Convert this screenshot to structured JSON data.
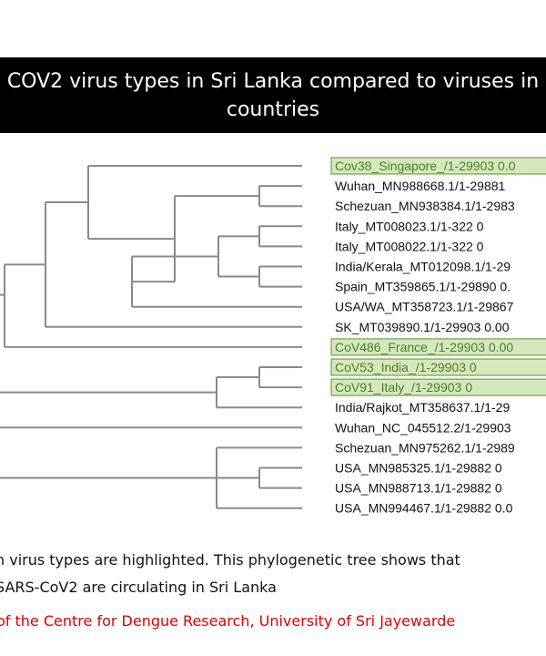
{
  "title": {
    "line1": "COV2 virus types in Sri Lanka compared to viruses in",
    "line2": "countries"
  },
  "tree": {
    "leaves": [
      {
        "label": "Cov38_Singapore_/1-29903 0.0",
        "highlighted": true
      },
      {
        "label": "Wuhan_MN988668.1/1-29881",
        "highlighted": false
      },
      {
        "label": "Schezuan_MN938384.1/1-2983",
        "highlighted": false
      },
      {
        "label": "Italy_MT008023.1/1-322 0",
        "highlighted": false
      },
      {
        "label": "Italy_MT008022.1/1-322 0",
        "highlighted": false
      },
      {
        "label": "India/Kerala_MT012098.1/1-29",
        "highlighted": false
      },
      {
        "label": "Spain_MT359865.1/1-29890 0.",
        "highlighted": false
      },
      {
        "label": "USA/WA_MT358723.1/1-29867",
        "highlighted": false
      },
      {
        "label": "SK_MT039890.1/1-29903 0.00",
        "highlighted": false
      },
      {
        "label": "CoV486_France_/1-29903 0.00",
        "highlighted": true
      },
      {
        "label": "CoV53_India_/1-29903 0",
        "highlighted": true
      },
      {
        "label": "CoV91_Italy_/1-29903 0",
        "highlighted": true
      },
      {
        "label": "India/Rajkot_MT358637.1/1-29",
        "highlighted": false
      },
      {
        "label": "Wuhan_NC_045512.2/1-29903",
        "highlighted": false
      },
      {
        "label": "Schezuan_MN975262.1/1-2989",
        "highlighted": false
      },
      {
        "label": "USA_MN985325.1/1-29882 0",
        "highlighted": false
      },
      {
        "label": "USA_MN988713.1/1-29882 0",
        "highlighted": false
      },
      {
        "label": "USA_MN994467.1/1-29882 0.0",
        "highlighted": false
      }
    ]
  },
  "caption": {
    "line1": "n virus types are highlighted. This phylogenetic tree shows that",
    "line2": "SARS-CoV2 are circulating in Sri Lanka"
  },
  "credit": "of the Centre for Dengue Research, University of Sri Jayewarde",
  "colors": {
    "highlight_fill": "#d5e8bd",
    "highlight_border": "#5b8f2e",
    "branch": "#8a8a8a",
    "credit_text": "#e00000",
    "title_bg": "#000000"
  }
}
